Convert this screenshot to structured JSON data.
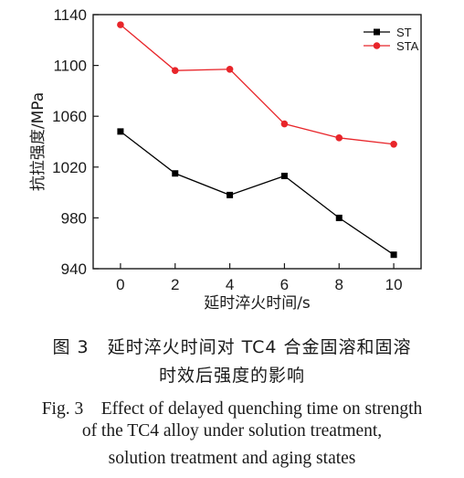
{
  "chart_data": {
    "type": "line",
    "x": [
      0,
      2,
      4,
      6,
      8,
      10
    ],
    "series": [
      {
        "name": "ST",
        "values": [
          1048,
          1015,
          998,
          1013,
          980,
          951
        ],
        "color": "#000000",
        "marker": "square"
      },
      {
        "name": "STA",
        "values": [
          1132,
          1096,
          1097,
          1054,
          1043,
          1038
        ],
        "color": "#e8252a",
        "marker": "circle"
      }
    ],
    "xlabel": "延时淬火时间/s",
    "ylabel": "抗拉强度/MPa",
    "xlim": [
      -1,
      11
    ],
    "ylim": [
      940,
      1140
    ],
    "xticks": [
      "0",
      "2",
      "4",
      "6",
      "8",
      "10"
    ],
    "yticks": [
      "940",
      "980",
      "1020",
      "1060",
      "1100",
      "1140"
    ],
    "grid": false,
    "legend_position": "top-right"
  },
  "caption": {
    "cn_line1": "图 3　延时淬火时间对 TC4 合金固溶和固溶",
    "cn_line2": "时效后强度的影响",
    "en_line1": "Fig. 3　Effect of delayed quenching time on strength",
    "en_line2": "of the TC4 alloy under solution treatment,",
    "en_line3": "solution treatment and aging states"
  }
}
